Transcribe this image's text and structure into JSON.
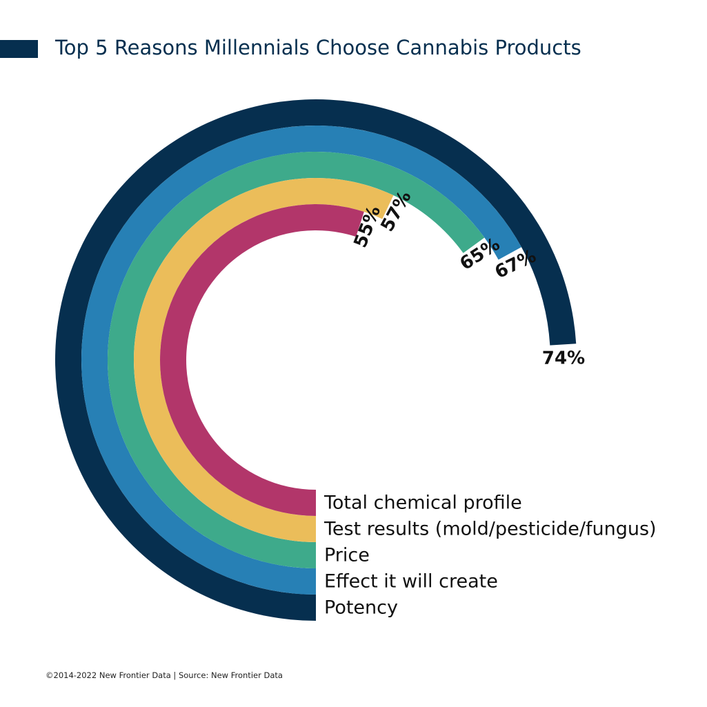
{
  "chart_data": {
    "type": "radial-bar",
    "title": "Top 5 Reasons Millennials Choose Cannabis Products",
    "unit": "%",
    "series": [
      {
        "label": "Potency",
        "value": 74,
        "value_label": "74%",
        "color": "#062f4f"
      },
      {
        "label": "Effect it will create",
        "value": 67,
        "value_label": "67%",
        "color": "#2780b5"
      },
      {
        "label": "Price",
        "value": 65,
        "value_label": "65%",
        "color": "#3eaa8b"
      },
      {
        "label": "Test results (mold/pesticide/fungus)",
        "value": 57,
        "value_label": "57%",
        "color": "#ebbd5a"
      },
      {
        "label": "Total chemical profile",
        "value": 55,
        "value_label": "55%",
        "color": "#b2366a"
      }
    ]
  },
  "footer": "©2014-2022  New Frontier Data | Source: New Frontier Data",
  "colors": {
    "title": "#062f4f",
    "accent_bar": "#062f4f"
  }
}
